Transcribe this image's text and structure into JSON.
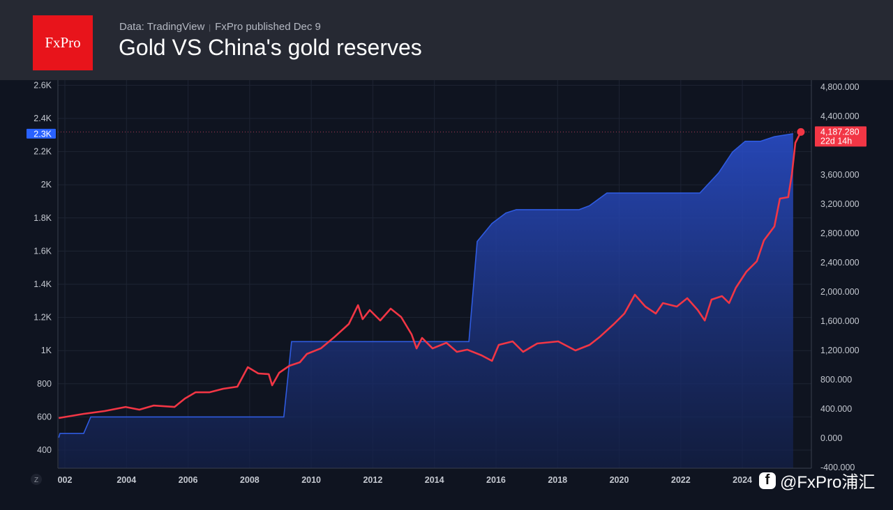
{
  "header": {
    "logo_text": "FxPro",
    "source": "Data: TradingView",
    "published": "FxPro published Dec 9",
    "title": "Gold VS China's gold reserves"
  },
  "watermark": {
    "icon": "facebook-icon",
    "text": "@FxPro浦汇"
  },
  "chart_data": {
    "type": "line",
    "title": "Gold VS China's gold reserves",
    "grid": true,
    "x_ticks": [
      "002",
      "2004",
      "2006",
      "2008",
      "2010",
      "2012",
      "2014",
      "2016",
      "2018",
      "2020",
      "2022",
      "2024"
    ],
    "xlim": [
      2001.8,
      2026.3
    ],
    "left_axis": {
      "ticks": [
        "400",
        "600",
        "800",
        "1K",
        "1.2K",
        "1.4K",
        "1.6K",
        "1.8K",
        "2K",
        "2.2K",
        "2.4K",
        "2.6K"
      ],
      "tick_values": [
        400,
        600,
        800,
        1000,
        1200,
        1400,
        1600,
        1800,
        2000,
        2200,
        2400,
        2600
      ],
      "ylim": [
        300,
        2630
      ],
      "last_value_label": "2.3K"
    },
    "right_axis": {
      "ticks": [
        "-400.000",
        "0.000",
        "400.000",
        "800.000",
        "1,200.000",
        "1,600.000",
        "2,000.000",
        "2,400.000",
        "2,800.000",
        "3,200.000",
        "3,600.000",
        "4,400.000",
        "4,800.000"
      ],
      "tick_values": [
        -400,
        0,
        400,
        800,
        1200,
        1600,
        2000,
        2400,
        2800,
        3200,
        3600,
        4400,
        4800
      ],
      "ylim": [
        -400,
        5100
      ],
      "last_value_label": "4,187.280",
      "countdown_label": "22d 14h"
    },
    "series": [
      {
        "axis": "left",
        "style": "area",
        "color": "#2f5be0",
        "points": [
          [
            2001.8,
            475
          ],
          [
            2001.84,
            500
          ],
          [
            2002.61,
            500
          ],
          [
            2002.84,
            600
          ],
          [
            2009.11,
            600
          ],
          [
            2009.36,
            1054
          ],
          [
            2015.12,
            1054
          ],
          [
            2015.39,
            1658
          ],
          [
            2015.87,
            1767
          ],
          [
            2016.32,
            1830
          ],
          [
            2016.66,
            1850
          ],
          [
            2018.7,
            1850
          ],
          [
            2019.04,
            1874
          ],
          [
            2019.6,
            1950
          ],
          [
            2022.62,
            1950
          ],
          [
            2023.23,
            2072
          ],
          [
            2023.68,
            2198
          ],
          [
            2024.09,
            2262
          ],
          [
            2024.59,
            2262
          ],
          [
            2025.04,
            2290
          ],
          [
            2025.65,
            2308
          ]
        ]
      },
      {
        "axis": "right",
        "style": "line",
        "color": "#f23645",
        "points": [
          [
            2001.8,
            276
          ],
          [
            2002.61,
            333
          ],
          [
            2003.29,
            371
          ],
          [
            2003.97,
            428
          ],
          [
            2004.42,
            390
          ],
          [
            2004.88,
            447
          ],
          [
            2005.56,
            428
          ],
          [
            2005.9,
            543
          ],
          [
            2006.24,
            628
          ],
          [
            2006.69,
            628
          ],
          [
            2007.14,
            676
          ],
          [
            2007.6,
            705
          ],
          [
            2007.94,
            971
          ],
          [
            2008.28,
            886
          ],
          [
            2008.62,
            876
          ],
          [
            2008.73,
            724
          ],
          [
            2008.96,
            895
          ],
          [
            2009.29,
            990
          ],
          [
            2009.63,
            1038
          ],
          [
            2009.86,
            1152
          ],
          [
            2010.31,
            1228
          ],
          [
            2010.77,
            1390
          ],
          [
            2011.22,
            1562
          ],
          [
            2011.52,
            1819
          ],
          [
            2011.67,
            1628
          ],
          [
            2011.9,
            1752
          ],
          [
            2012.24,
            1610
          ],
          [
            2012.58,
            1771
          ],
          [
            2012.92,
            1657
          ],
          [
            2013.26,
            1419
          ],
          [
            2013.42,
            1228
          ],
          [
            2013.6,
            1371
          ],
          [
            2013.94,
            1228
          ],
          [
            2014.39,
            1305
          ],
          [
            2014.73,
            1181
          ],
          [
            2015.07,
            1210
          ],
          [
            2015.53,
            1133
          ],
          [
            2015.87,
            1057
          ],
          [
            2016.09,
            1276
          ],
          [
            2016.54,
            1324
          ],
          [
            2016.88,
            1181
          ],
          [
            2017.34,
            1295
          ],
          [
            2018.02,
            1324
          ],
          [
            2018.58,
            1200
          ],
          [
            2019.04,
            1276
          ],
          [
            2019.38,
            1390
          ],
          [
            2019.83,
            1562
          ],
          [
            2020.17,
            1705
          ],
          [
            2020.51,
            1962
          ],
          [
            2020.85,
            1800
          ],
          [
            2021.19,
            1705
          ],
          [
            2021.42,
            1848
          ],
          [
            2021.87,
            1800
          ],
          [
            2022.21,
            1914
          ],
          [
            2022.55,
            1752
          ],
          [
            2022.78,
            1610
          ],
          [
            2023.0,
            1895
          ],
          [
            2023.34,
            1943
          ],
          [
            2023.57,
            1848
          ],
          [
            2023.79,
            2057
          ],
          [
            2024.13,
            2276
          ],
          [
            2024.47,
            2419
          ],
          [
            2024.7,
            2705
          ],
          [
            2025.04,
            2895
          ],
          [
            2025.22,
            3276
          ],
          [
            2025.49,
            3295
          ],
          [
            2025.61,
            3610
          ],
          [
            2025.72,
            4038
          ],
          [
            2025.9,
            4187
          ]
        ]
      }
    ],
    "colors": {
      "area": "#2f5be0",
      "gold_line": "#f23645",
      "left_badge": "#2962ff",
      "right_badge": "#f23645"
    }
  }
}
